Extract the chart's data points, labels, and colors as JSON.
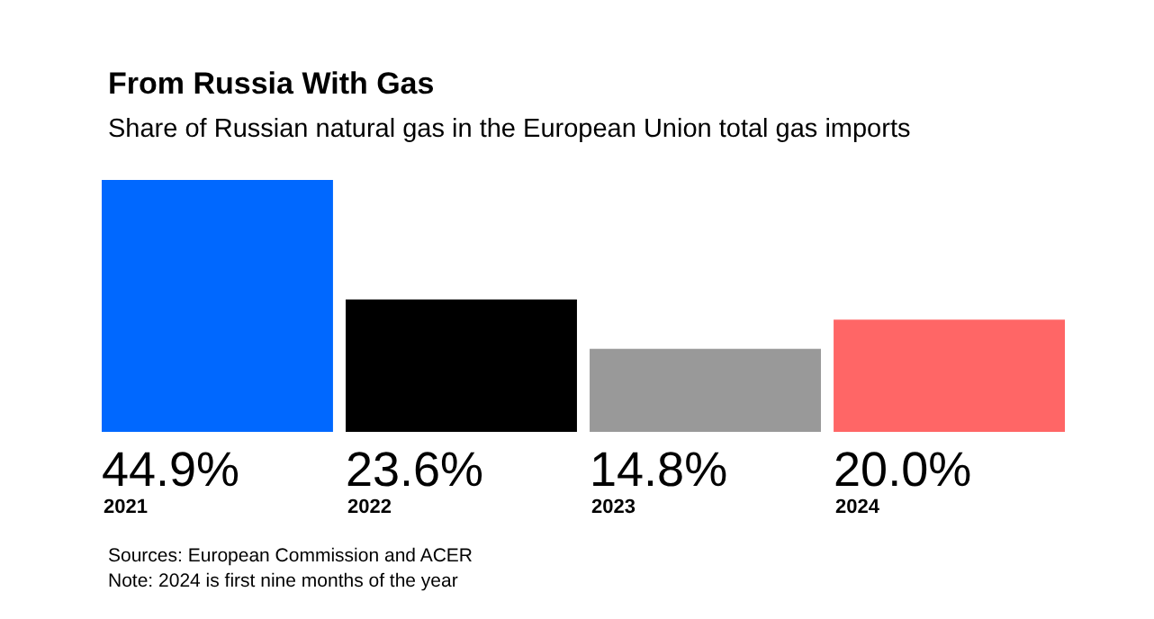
{
  "chart_data": {
    "type": "bar",
    "title": "From Russia With Gas",
    "subtitle": "Share of Russian natural gas in the European Union total gas imports",
    "categories": [
      "2021",
      "2022",
      "2023",
      "2024"
    ],
    "values": [
      44.9,
      23.6,
      14.8,
      20.0
    ],
    "colors": [
      "#0068ff",
      "#000000",
      "#999999",
      "#ff6666"
    ],
    "value_labels": [
      "44.9%",
      "23.6%",
      "14.8%",
      "20.0%"
    ],
    "annotations": [
      "Sources: European Commission and ACER",
      "Note: 2024 is first nine months of the year"
    ]
  }
}
